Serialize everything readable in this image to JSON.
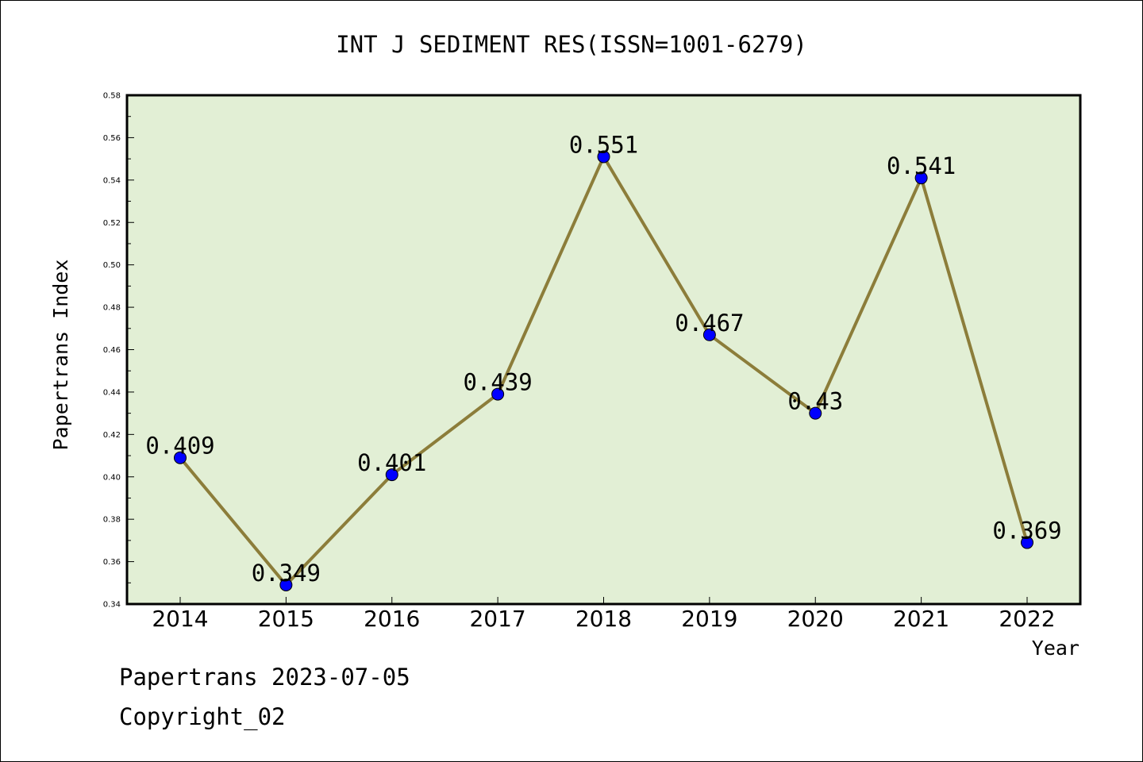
{
  "chart_data": {
    "type": "line",
    "title": "INT J SEDIMENT RES(ISSN=1001-6279)",
    "xlabel": "Year",
    "ylabel": "Papertrans Index",
    "categories": [
      "2014",
      "2015",
      "2016",
      "2017",
      "2018",
      "2019",
      "2020",
      "2021",
      "2022"
    ],
    "values": [
      0.409,
      0.349,
      0.401,
      0.439,
      0.551,
      0.467,
      0.43,
      0.541,
      0.369
    ],
    "data_labels": [
      "0.409",
      "0.349",
      "0.401",
      "0.439",
      "0.551",
      "0.467",
      "0.43",
      "0.541",
      "0.369"
    ],
    "ylim": [
      0.34,
      0.58
    ],
    "yticks": [
      "0.34",
      "0.36",
      "0.38",
      "0.40",
      "0.42",
      "0.44",
      "0.46",
      "0.48",
      "0.50",
      "0.52",
      "0.54",
      "0.56",
      "0.58"
    ],
    "grid": false,
    "legend": "none",
    "colors": {
      "plot_background": "#e2efd5",
      "line": "#8c7d3a",
      "marker": "#0000ff"
    }
  },
  "footer": {
    "line1": "Papertrans 2023-07-05",
    "line2": "Copyright_02"
  }
}
